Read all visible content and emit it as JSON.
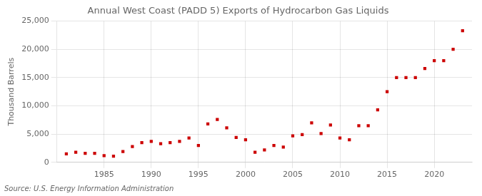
{
  "chart_data": {
    "type": "scatter",
    "title": "Annual West Coast (PADD 5) Exports of Hydrocarbon Gas Liquids",
    "y_label": "Thousand Barrels",
    "annotations": [
      "Source: U.S. Energy Information Administration"
    ],
    "x": [
      1981,
      1982,
      1983,
      1984,
      1985,
      1986,
      1987,
      1988,
      1989,
      1990,
      1991,
      1992,
      1993,
      1994,
      1995,
      1996,
      1997,
      1998,
      1999,
      2000,
      2001,
      2002,
      2003,
      2004,
      2005,
      2006,
      2007,
      2008,
      2009,
      2010,
      2011,
      2012,
      2013,
      2014,
      2015,
      2016,
      2017,
      2018,
      2019,
      2020,
      2021,
      2022,
      2023
    ],
    "values": [
      1500,
      1800,
      1600,
      1600,
      1200,
      1100,
      1900,
      2800,
      3500,
      3700,
      3300,
      3500,
      3700,
      4300,
      3000,
      6800,
      7600,
      6100,
      4400,
      4000,
      1800,
      2200,
      3000,
      2700,
      4700,
      4900,
      7000,
      5100,
      6600,
      4300,
      4000,
      6500,
      6500,
      9300,
      12500,
      15000,
      15000,
      15000,
      16600,
      18000,
      18000,
      20000,
      23300
    ],
    "color": "#cc0000",
    "marker": "square",
    "xlim": [
      1980,
      2024
    ],
    "xticks": [
      1985,
      1990,
      1995,
      2000,
      2005,
      2010,
      2015,
      2020
    ],
    "ylim": [
      0,
      25000
    ],
    "yticks": [
      0,
      {
        "value": 5000,
        "label": "5,000"
      },
      {
        "value": 10000,
        "label": "10,000"
      },
      {
        "value": 15000,
        "label": "15,000"
      },
      {
        "value": 20000,
        "label": "20,000"
      },
      {
        "value": 25000,
        "label": "25,000"
      }
    ],
    "grid": true
  }
}
